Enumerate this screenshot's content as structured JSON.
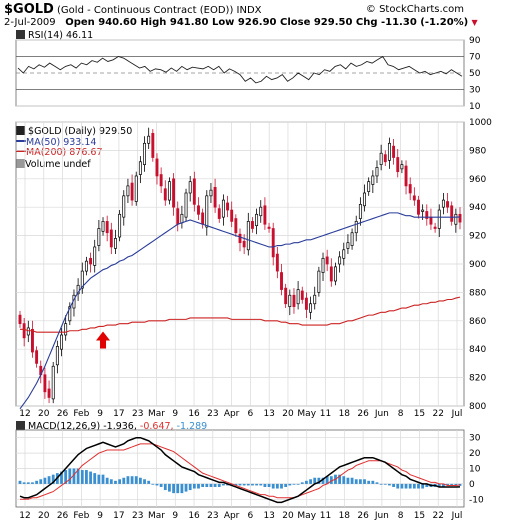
{
  "header": {
    "symbol": "$GOLD",
    "name": "(Gold - Continuous Contract (EOD))",
    "exchange": "INDX",
    "watermark": "© StockCharts.com",
    "date": "2-Jul-2009",
    "quote": "Open 940.60  High 941.80  Low 926.90  Close 929.50  Chg -11.30 (-1.20%)",
    "chg_arrow": "▼"
  },
  "colors": {
    "up": "#000000",
    "down": "#c8102e",
    "ma50": "#2b3d9a",
    "ma200": "#cc2222",
    "macd": "#000000",
    "signal": "#e03030",
    "hist": "#3a8fd0",
    "arrow": "#e00000"
  },
  "chart_data": [
    {
      "type": "line",
      "panel": "rsi",
      "label": "RSI(14) 46.11",
      "yticks": [
        90,
        70,
        50,
        30,
        10
      ],
      "ylim": [
        10,
        90
      ],
      "values": [
        56,
        50,
        58,
        55,
        60,
        57,
        62,
        58,
        54,
        58,
        60,
        56,
        62,
        60,
        65,
        63,
        68,
        64,
        66,
        70,
        68,
        64,
        60,
        56,
        58,
        52,
        55,
        54,
        51,
        56,
        52,
        58,
        54,
        57,
        56,
        55,
        58,
        54,
        58,
        50,
        55,
        52,
        48,
        40,
        44,
        38,
        40,
        46,
        42,
        44,
        48,
        40,
        44,
        50,
        46,
        42,
        50,
        48,
        54,
        52,
        58,
        60,
        55,
        62,
        58,
        60,
        64,
        62,
        66,
        70,
        60,
        58,
        54,
        56,
        58,
        54,
        50,
        52,
        48,
        50,
        52,
        49,
        54,
        50,
        46
      ]
    },
    {
      "type": "candlestick",
      "panel": "price",
      "legend": [
        "$GOLD (Daily) 929.50",
        "MA(50) 933.14",
        "MA(200) 876.67",
        "Volume undef"
      ],
      "yticks": [
        1000,
        980,
        960,
        940,
        920,
        900,
        880,
        860,
        840,
        820,
        800
      ],
      "ylim": [
        800,
        1000
      ],
      "x_labels": [
        "12",
        "20",
        "26",
        "Feb",
        "9",
        "17",
        "23",
        "Mar",
        "9",
        "16",
        "23",
        "Apr",
        "6",
        "13",
        "20",
        "May",
        "11",
        "18",
        "26",
        "Jun",
        "8",
        "15",
        "22",
        "Jul"
      ],
      "closes": [
        858,
        848,
        855,
        838,
        830,
        822,
        810,
        806,
        828,
        842,
        850,
        858,
        870,
        878,
        885,
        895,
        902,
        900,
        912,
        925,
        930,
        922,
        912,
        918,
        935,
        948,
        955,
        945,
        962,
        972,
        985,
        990,
        975,
        962,
        955,
        945,
        958,
        940,
        928,
        935,
        950,
        958,
        942,
        935,
        928,
        948,
        952,
        940,
        932,
        945,
        938,
        930,
        922,
        915,
        912,
        930,
        925,
        935,
        940,
        928,
        925,
        905,
        895,
        882,
        872,
        878,
        870,
        882,
        875,
        868,
        872,
        878,
        895,
        904,
        900,
        888,
        898,
        905,
        910,
        915,
        922,
        930,
        942,
        950,
        958,
        962,
        968,
        978,
        972,
        985,
        975,
        965,
        970,
        955,
        950,
        945,
        935,
        938,
        932,
        928,
        925,
        938,
        945,
        940,
        930,
        935,
        929.5
      ],
      "ma50": [
        798,
        802,
        806,
        811,
        816,
        822,
        828,
        835,
        842,
        849,
        856,
        863,
        869,
        875,
        880,
        884,
        887,
        890,
        892,
        894,
        896,
        897,
        899,
        900,
        902,
        903,
        905,
        906,
        908,
        910,
        912,
        914,
        916,
        918,
        920,
        922,
        924,
        926,
        928,
        929,
        930,
        931,
        930,
        929,
        928,
        927,
        926,
        925,
        924,
        923,
        922,
        921,
        920,
        919,
        918,
        917,
        916,
        915,
        914,
        913,
        912,
        912,
        913,
        913,
        914,
        914,
        915,
        915,
        916,
        917,
        917,
        918,
        919,
        920,
        921,
        922,
        923,
        924,
        925,
        926,
        927,
        928,
        929,
        930,
        931,
        932,
        933,
        934,
        935,
        936,
        936,
        936,
        935,
        934,
        934,
        933,
        933,
        933,
        933,
        933,
        933,
        933,
        933,
        933,
        933,
        933,
        933.14
      ],
      "ma200": [
        854,
        854,
        853,
        853,
        852,
        852,
        852,
        852,
        852,
        852,
        852,
        852,
        853,
        853,
        853,
        854,
        854,
        855,
        855,
        856,
        856,
        857,
        857,
        857,
        858,
        858,
        858,
        859,
        859,
        859,
        859,
        860,
        860,
        860,
        860,
        860,
        861,
        861,
        861,
        861,
        861,
        862,
        862,
        862,
        862,
        862,
        862,
        862,
        862,
        862,
        862,
        861,
        861,
        861,
        861,
        861,
        861,
        861,
        861,
        860,
        860,
        860,
        860,
        859,
        859,
        858,
        858,
        858,
        857,
        857,
        857,
        857,
        857,
        857,
        857,
        858,
        858,
        858,
        859,
        860,
        860,
        861,
        862,
        863,
        864,
        864,
        865,
        866,
        866,
        867,
        867,
        868,
        869,
        869,
        870,
        871,
        871,
        872,
        872,
        873,
        873,
        874,
        874,
        875,
        875,
        876,
        876.67
      ]
    },
    {
      "type": "line",
      "panel": "macd",
      "label": "MACD(12,26,9) -1.936, -0.647, -1.289",
      "label_parts": {
        "name": "MACD(12,26,9)",
        "macd": "-1.936,",
        "signal": "-0.647,",
        "hist": "-1.289"
      },
      "yticks": [
        30,
        20,
        10,
        0,
        -10
      ],
      "ylim": [
        -15,
        35
      ],
      "x_labels": [
        "12",
        "20",
        "26",
        "Feb",
        "9",
        "17",
        "23",
        "Mar",
        "9",
        "16",
        "23",
        "Apr",
        "6",
        "13",
        "20",
        "May",
        "11",
        "18",
        "26",
        "Jun",
        "8",
        "15",
        "22",
        "Jul"
      ],
      "macd": [
        -8,
        -9,
        -9,
        -8,
        -7,
        -5,
        -3,
        -1,
        1,
        4,
        7,
        10,
        13,
        16,
        19,
        21,
        23,
        24,
        25,
        26,
        27,
        26,
        25,
        24,
        25,
        26,
        28,
        29,
        30,
        30,
        29,
        28,
        26,
        24,
        22,
        19,
        17,
        15,
        13,
        11,
        10,
        9,
        8,
        6,
        5,
        4,
        3,
        2,
        1,
        1,
        0,
        -1,
        -2,
        -3,
        -4,
        -5,
        -6,
        -7,
        -8,
        -9,
        -10,
        -11,
        -12,
        -12,
        -11,
        -10,
        -9,
        -8,
        -6,
        -4,
        -2,
        0,
        1,
        3,
        5,
        7,
        9,
        11,
        12,
        13,
        14,
        15,
        16,
        17,
        17,
        17,
        16,
        15,
        14,
        12,
        10,
        8,
        6,
        5,
        3,
        2,
        1,
        0,
        0,
        -1,
        -1,
        -2,
        -2,
        -2,
        -2,
        -2,
        -1.936
      ],
      "signal": [
        -10,
        -10,
        -10,
        -9,
        -9,
        -8,
        -7,
        -6,
        -5,
        -3,
        -1,
        1,
        3,
        6,
        9,
        12,
        14,
        16,
        18,
        20,
        21,
        22,
        22,
        22,
        22,
        22,
        23,
        24,
        25,
        26,
        26,
        26,
        26,
        25,
        24,
        23,
        22,
        21,
        19,
        17,
        15,
        13,
        11,
        9,
        7,
        6,
        5,
        4,
        3,
        2,
        1,
        0,
        -1,
        -2,
        -3,
        -4,
        -5,
        -6,
        -7,
        -7,
        -8,
        -8,
        -9,
        -9,
        -9,
        -9,
        -9,
        -8,
        -7,
        -6,
        -5,
        -4,
        -3,
        -1,
        0,
        2,
        3,
        5,
        7,
        9,
        10,
        12,
        13,
        14,
        15,
        15,
        15,
        15,
        14,
        13,
        12,
        11,
        9,
        8,
        6,
        5,
        4,
        3,
        2,
        1,
        1,
        0,
        0,
        -1,
        -1,
        -1,
        -0.647
      ]
    }
  ]
}
